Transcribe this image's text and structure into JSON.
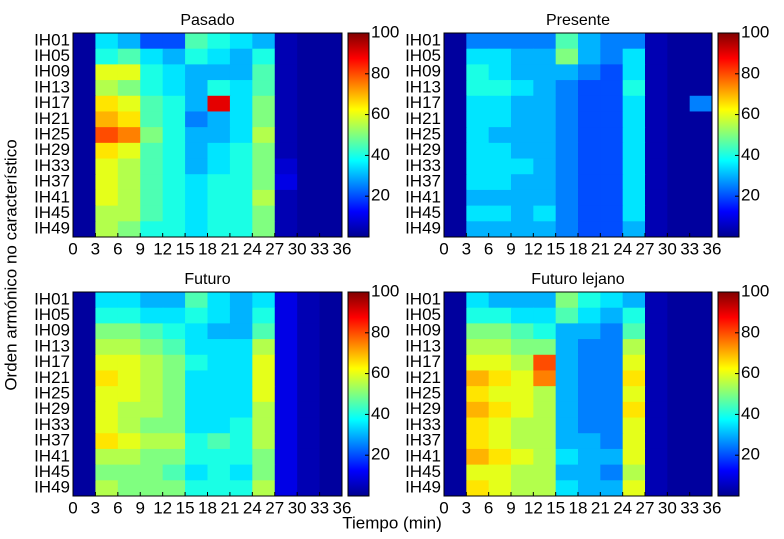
{
  "figure": {
    "xlabel": "Tiempo (min)",
    "ylabel": "Orden armónico no característico"
  },
  "chart_data": [
    {
      "type": "heatmap",
      "title": "Pasado",
      "ylabels": [
        "IH01",
        "IH05",
        "IH09",
        "IH13",
        "IH17",
        "IH21",
        "IH25",
        "IH29",
        "IH33",
        "IH37",
        "IH41",
        "IH45",
        "IH49"
      ],
      "xlim": [
        0,
        36
      ],
      "xticks": [
        0,
        3,
        6,
        9,
        12,
        15,
        18,
        21,
        24,
        27,
        30,
        33,
        36
      ],
      "clim": [
        0,
        100
      ],
      "cticks": [
        20,
        40,
        60,
        80,
        100
      ],
      "values": [
        [
          3,
          35,
          30,
          20,
          20,
          45,
          40,
          35,
          30,
          5,
          3,
          3
        ],
        [
          3,
          40,
          45,
          35,
          30,
          40,
          35,
          30,
          40,
          5,
          3,
          3
        ],
        [
          3,
          60,
          60,
          40,
          35,
          30,
          30,
          30,
          45,
          5,
          3,
          3
        ],
        [
          3,
          55,
          50,
          40,
          35,
          30,
          40,
          35,
          45,
          5,
          3,
          3
        ],
        [
          3,
          65,
          60,
          45,
          40,
          30,
          90,
          35,
          50,
          5,
          3,
          3
        ],
        [
          3,
          70,
          65,
          45,
          40,
          25,
          30,
          35,
          50,
          5,
          3,
          3
        ],
        [
          3,
          80,
          75,
          50,
          40,
          30,
          30,
          35,
          55,
          5,
          3,
          3
        ],
        [
          3,
          65,
          60,
          45,
          40,
          30,
          35,
          40,
          50,
          5,
          3,
          3
        ],
        [
          3,
          60,
          55,
          45,
          40,
          30,
          35,
          40,
          50,
          8,
          3,
          3
        ],
        [
          3,
          60,
          55,
          45,
          40,
          35,
          40,
          40,
          50,
          10,
          3,
          3
        ],
        [
          3,
          60,
          55,
          45,
          40,
          35,
          40,
          40,
          55,
          5,
          3,
          3
        ],
        [
          3,
          55,
          55,
          45,
          40,
          35,
          40,
          40,
          50,
          5,
          3,
          3
        ],
        [
          3,
          55,
          50,
          40,
          40,
          35,
          40,
          40,
          50,
          5,
          3,
          3
        ]
      ]
    },
    {
      "type": "heatmap",
      "title": "Presente",
      "ylabels": [
        "IH01",
        "IH05",
        "IH09",
        "IH13",
        "IH17",
        "IH21",
        "IH25",
        "IH29",
        "IH33",
        "IH37",
        "IH41",
        "IH45",
        "IH49"
      ],
      "xlim": [
        0,
        36
      ],
      "xticks": [
        0,
        3,
        6,
        9,
        12,
        15,
        18,
        21,
        24,
        27,
        30,
        33,
        36
      ],
      "clim": [
        0,
        100
      ],
      "cticks": [
        20,
        40,
        60,
        80,
        100
      ],
      "values": [
        [
          3,
          25,
          25,
          25,
          25,
          45,
          30,
          25,
          25,
          5,
          3,
          3
        ],
        [
          3,
          35,
          35,
          30,
          30,
          50,
          30,
          25,
          35,
          5,
          3,
          3
        ],
        [
          3,
          40,
          35,
          30,
          30,
          30,
          25,
          20,
          35,
          5,
          3,
          3
        ],
        [
          3,
          40,
          40,
          35,
          30,
          25,
          20,
          20,
          40,
          5,
          3,
          3
        ],
        [
          3,
          35,
          35,
          30,
          30,
          25,
          20,
          20,
          35,
          5,
          3,
          25
        ],
        [
          3,
          35,
          35,
          30,
          30,
          25,
          20,
          20,
          35,
          5,
          3,
          3
        ],
        [
          3,
          35,
          30,
          30,
          30,
          25,
          20,
          20,
          35,
          5,
          3,
          3
        ],
        [
          3,
          35,
          35,
          30,
          30,
          25,
          20,
          20,
          35,
          5,
          3,
          3
        ],
        [
          3,
          35,
          35,
          35,
          30,
          25,
          20,
          20,
          35,
          5,
          3,
          3
        ],
        [
          3,
          35,
          35,
          30,
          30,
          25,
          20,
          20,
          35,
          5,
          3,
          3
        ],
        [
          3,
          30,
          30,
          30,
          30,
          25,
          20,
          20,
          35,
          5,
          3,
          3
        ],
        [
          3,
          35,
          35,
          30,
          35,
          25,
          20,
          20,
          35,
          5,
          3,
          3
        ],
        [
          3,
          30,
          30,
          30,
          30,
          25,
          20,
          20,
          30,
          5,
          3,
          3
        ]
      ]
    },
    {
      "type": "heatmap",
      "title": "Futuro",
      "ylabels": [
        "IH01",
        "IH05",
        "IH09",
        "IH13",
        "IH17",
        "IH21",
        "IH25",
        "IH29",
        "IH33",
        "IH37",
        "IH41",
        "IH45",
        "IH49"
      ],
      "xlim": [
        0,
        36
      ],
      "xticks": [
        0,
        3,
        6,
        9,
        12,
        15,
        18,
        21,
        24,
        27,
        30,
        33,
        36
      ],
      "clim": [
        0,
        100
      ],
      "cticks": [
        20,
        40,
        60,
        80,
        100
      ],
      "values": [
        [
          3,
          35,
          35,
          30,
          30,
          45,
          35,
          30,
          35,
          10,
          5,
          3
        ],
        [
          3,
          40,
          40,
          35,
          35,
          40,
          35,
          30,
          40,
          10,
          5,
          3
        ],
        [
          3,
          50,
          50,
          45,
          40,
          35,
          30,
          30,
          45,
          10,
          5,
          3
        ],
        [
          3,
          55,
          55,
          50,
          45,
          35,
          35,
          35,
          55,
          10,
          5,
          3
        ],
        [
          3,
          60,
          60,
          55,
          50,
          40,
          35,
          35,
          60,
          10,
          5,
          3
        ],
        [
          3,
          65,
          60,
          55,
          50,
          35,
          35,
          35,
          60,
          10,
          5,
          3
        ],
        [
          3,
          60,
          60,
          55,
          50,
          35,
          35,
          35,
          60,
          10,
          5,
          3
        ],
        [
          3,
          60,
          55,
          55,
          50,
          35,
          35,
          35,
          55,
          10,
          5,
          3
        ],
        [
          3,
          60,
          55,
          50,
          50,
          35,
          35,
          40,
          55,
          10,
          5,
          3
        ],
        [
          3,
          65,
          60,
          55,
          55,
          40,
          45,
          40,
          55,
          10,
          5,
          3
        ],
        [
          3,
          55,
          55,
          50,
          50,
          40,
          40,
          40,
          50,
          10,
          5,
          3
        ],
        [
          3,
          50,
          50,
          50,
          45,
          35,
          40,
          35,
          50,
          10,
          5,
          3
        ],
        [
          3,
          55,
          50,
          50,
          50,
          40,
          40,
          40,
          55,
          10,
          5,
          3
        ]
      ]
    },
    {
      "type": "heatmap",
      "title": "Futuro lejano",
      "ylabels": [
        "IH01",
        "IH05",
        "IH09",
        "IH13",
        "IH17",
        "IH21",
        "IH25",
        "IH29",
        "IH33",
        "IH37",
        "IH41",
        "IH45",
        "IH49"
      ],
      "xlim": [
        0,
        36
      ],
      "xticks": [
        0,
        3,
        6,
        9,
        12,
        15,
        18,
        21,
        24,
        27,
        30,
        33,
        36
      ],
      "clim": [
        0,
        100
      ],
      "cticks": [
        20,
        40,
        60,
        80,
        100
      ],
      "values": [
        [
          3,
          35,
          30,
          30,
          30,
          50,
          40,
          35,
          30,
          5,
          3,
          3
        ],
        [
          3,
          40,
          40,
          35,
          35,
          45,
          35,
          30,
          40,
          5,
          3,
          3
        ],
        [
          3,
          50,
          50,
          45,
          40,
          30,
          30,
          25,
          45,
          5,
          3,
          3
        ],
        [
          3,
          55,
          55,
          50,
          50,
          30,
          25,
          25,
          55,
          5,
          3,
          3
        ],
        [
          3,
          60,
          60,
          55,
          80,
          30,
          25,
          25,
          60,
          5,
          3,
          3
        ],
        [
          3,
          70,
          65,
          60,
          75,
          30,
          25,
          25,
          65,
          5,
          3,
          3
        ],
        [
          3,
          65,
          60,
          60,
          55,
          30,
          25,
          25,
          60,
          5,
          3,
          3
        ],
        [
          3,
          70,
          65,
          60,
          55,
          30,
          25,
          25,
          65,
          5,
          3,
          3
        ],
        [
          3,
          65,
          60,
          55,
          55,
          30,
          25,
          25,
          60,
          5,
          3,
          3
        ],
        [
          3,
          65,
          60,
          55,
          55,
          30,
          30,
          25,
          60,
          5,
          3,
          3
        ],
        [
          3,
          70,
          65,
          60,
          55,
          35,
          30,
          30,
          60,
          5,
          3,
          3
        ],
        [
          3,
          60,
          60,
          55,
          55,
          30,
          30,
          25,
          55,
          5,
          3,
          3
        ],
        [
          3,
          65,
          60,
          55,
          55,
          35,
          30,
          30,
          60,
          5,
          3,
          3
        ]
      ]
    }
  ]
}
